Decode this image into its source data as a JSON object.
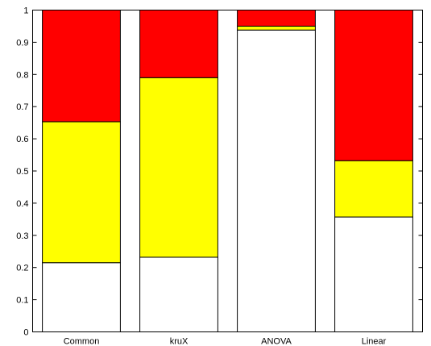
{
  "chart_data": {
    "type": "bar",
    "stacked": true,
    "categories": [
      "Common",
      "kruX",
      "ANOVA",
      "Linear"
    ],
    "series": [
      {
        "color": "#ffffff",
        "values": [
          0.215,
          0.232,
          0.938,
          0.357
        ]
      },
      {
        "color": "#ffff00",
        "values": [
          0.438,
          0.558,
          0.012,
          0.175
        ]
      },
      {
        "color": "#ff0000",
        "values": [
          0.347,
          0.21,
          0.05,
          0.468
        ]
      }
    ],
    "yticks": [
      "0",
      "0.1",
      "0.2",
      "0.3",
      "0.4",
      "0.5",
      "0.6",
      "0.7",
      "0.8",
      "0.9",
      "1"
    ],
    "ylim": [
      0,
      1
    ],
    "grid": false,
    "legend": "none",
    "title": "",
    "xlabel": "",
    "ylabel": ""
  }
}
